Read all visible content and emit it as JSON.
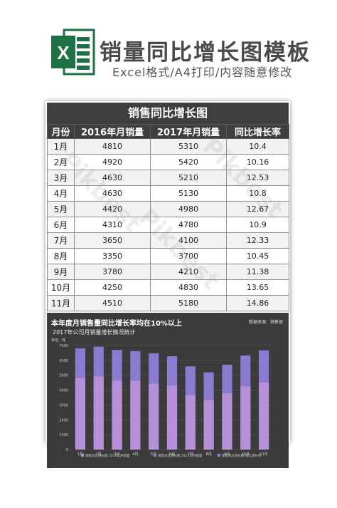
{
  "header": {
    "title": "销量同比增长图模板",
    "subtitle": "Excel格式/A4打印/内容随意修改"
  },
  "sheet": {
    "table_title": "销售同比增长图",
    "columns": [
      "月份",
      "2016年月销量",
      "2017年月销量",
      "同比增长率"
    ],
    "rows": [
      [
        "1月",
        "4810",
        "5310",
        "10.4"
      ],
      [
        "2月",
        "4920",
        "5420",
        "10.16"
      ],
      [
        "3月",
        "4630",
        "5210",
        "12.53"
      ],
      [
        "4月",
        "4630",
        "5130",
        "10.8"
      ],
      [
        "5月",
        "4420",
        "4980",
        "12.67"
      ],
      [
        "6月",
        "4310",
        "4780",
        "10.9"
      ],
      [
        "7月",
        "3650",
        "4100",
        "12.33"
      ],
      [
        "8月",
        "3350",
        "3700",
        "10.45"
      ],
      [
        "9月",
        "3780",
        "4210",
        "11.38"
      ],
      [
        "10月",
        "4250",
        "4830",
        "13.65"
      ],
      [
        "11月",
        "4510",
        "5180",
        "14.86"
      ]
    ]
  },
  "chart": {
    "title": "本年度月销售量同比增长率均在10%以上",
    "source": "数据来源：销售部",
    "subtitle": "2017年公司月销量增长情况统计",
    "unit": "单位：吨",
    "legend": [
      "销售同比增长图 2016年月销量",
      "销售同比增长图 2017年月销量",
      "销售同比增长图 同比增长率"
    ],
    "colors": {
      "bar_2016": "#b58fd8",
      "bar_2017": "#8a7bd1",
      "rate": "#7b8de0"
    }
  },
  "chart_data": {
    "type": "bar",
    "categories": [
      "1月",
      "2月",
      "3月",
      "4月",
      "5月",
      "6月",
      "7月",
      "8月",
      "9月",
      "10月",
      "11月"
    ],
    "series": [
      {
        "name": "销售同比增长图 2016年月销量",
        "values": [
          4810,
          4920,
          4630,
          4630,
          4420,
          4310,
          3650,
          3350,
          3780,
          4250,
          4510
        ]
      },
      {
        "name": "销售同比增长图 2017年月销量",
        "values": [
          5310,
          5420,
          5210,
          5130,
          4980,
          4780,
          4100,
          3700,
          4210,
          4830,
          5180
        ]
      },
      {
        "name": "销售同比增长图 同比增长率",
        "values": [
          10.4,
          10.16,
          12.53,
          10.8,
          12.67,
          10.9,
          12.33,
          10.45,
          11.38,
          13.65,
          14.86
        ]
      }
    ],
    "ylim": [
      0,
      7000
    ],
    "yticks": [
      "0",
      "1000",
      "2000",
      "3000",
      "4000",
      "5000",
      "6000",
      "7000"
    ],
    "ylabel": "单位：吨"
  }
}
